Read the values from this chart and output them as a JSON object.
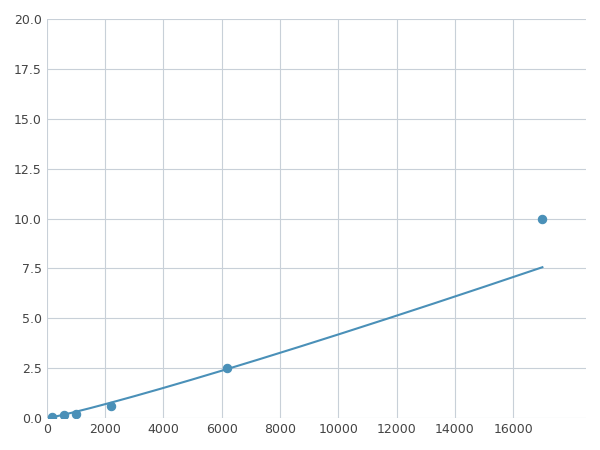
{
  "x_points": [
    200,
    600,
    1000,
    2200,
    6200,
    17000
  ],
  "y_points": [
    0.08,
    0.18,
    0.22,
    0.6,
    2.5,
    10.0
  ],
  "line_color": "#4a90b8",
  "marker_color": "#4a90b8",
  "marker_size": 6,
  "xlim": [
    0,
    18500
  ],
  "ylim": [
    0,
    20.0
  ],
  "xticks": [
    0,
    2000,
    4000,
    6000,
    8000,
    10000,
    12000,
    14000,
    16000
  ],
  "yticks": [
    0.0,
    2.5,
    5.0,
    7.5,
    10.0,
    12.5,
    15.0,
    17.5,
    20.0
  ],
  "grid_color": "#c8d0d8",
  "bg_color": "#ffffff",
  "fig_bg_color": "#ffffff"
}
